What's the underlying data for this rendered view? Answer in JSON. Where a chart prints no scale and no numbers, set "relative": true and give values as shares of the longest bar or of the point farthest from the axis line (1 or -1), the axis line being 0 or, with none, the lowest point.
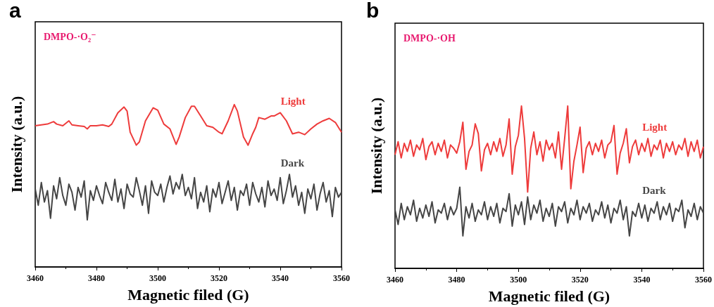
{
  "chart_data": [
    {
      "type": "line",
      "title": "a",
      "xlabel": "Magnetic filed (G)",
      "ylabel": "Intensity (a.u.)",
      "annotations": [
        "DMPO-·O₂⁻"
      ],
      "relative": true,
      "xlim": [
        3460,
        3560
      ],
      "xticks": [
        3460,
        3480,
        3500,
        3520,
        3540,
        3560
      ],
      "grid": false,
      "legend": false,
      "marker": "none",
      "line_style": "solid",
      "x": [
        3460,
        3461,
        3462,
        3463,
        3464,
        3465,
        3466,
        3467,
        3468,
        3469,
        3470,
        3471,
        3472,
        3473,
        3474,
        3475,
        3476,
        3477,
        3478,
        3479,
        3480,
        3481,
        3482,
        3483,
        3484,
        3485,
        3486,
        3487,
        3488,
        3489,
        3490,
        3491,
        3492,
        3493,
        3494,
        3495,
        3496,
        3497,
        3498,
        3499,
        3500,
        3501,
        3502,
        3503,
        3504,
        3505,
        3506,
        3507,
        3508,
        3509,
        3510,
        3511,
        3512,
        3513,
        3514,
        3515,
        3516,
        3517,
        3518,
        3519,
        3520,
        3521,
        3522,
        3523,
        3524,
        3525,
        3526,
        3527,
        3528,
        3529,
        3530,
        3531,
        3532,
        3533,
        3534,
        3535,
        3536,
        3537,
        3538,
        3539,
        3540,
        3541,
        3542,
        3543,
        3544,
        3545,
        3546,
        3547,
        3548,
        3549,
        3550,
        3551,
        3552,
        3553,
        3554,
        3555,
        3556,
        3557,
        3558,
        3559,
        3560
      ],
      "series": [
        {
          "name": "Light",
          "color": "#ee3b3b",
          "x": [
            3460,
            3462,
            3464,
            3466,
            3467,
            3469,
            3471,
            3472,
            3474,
            3476,
            3477,
            3478,
            3480,
            3482,
            3484,
            3485,
            3487,
            3489,
            3490,
            3491,
            3493,
            3494,
            3496,
            3498.5,
            3500,
            3502,
            3504,
            3506,
            3507,
            3509,
            3511,
            3512,
            3514,
            3516,
            3518,
            3520,
            3521,
            3523,
            3525,
            3526,
            3528,
            3529.5,
            3531,
            3532,
            3533,
            3535,
            3537,
            3538,
            3540,
            3542,
            3543,
            3544,
            3546,
            3548,
            3550,
            3552,
            3554,
            3556,
            3558,
            3560
          ],
          "values": [
            0.87,
            0.875,
            0.88,
            0.895,
            0.88,
            0.87,
            0.9,
            0.875,
            0.87,
            0.865,
            0.85,
            0.87,
            0.87,
            0.875,
            0.865,
            0.88,
            0.95,
            0.985,
            0.96,
            0.83,
            0.75,
            0.77,
            0.9,
            0.98,
            0.965,
            0.88,
            0.85,
            0.755,
            0.8,
            0.92,
            0.99,
            0.99,
            0.93,
            0.87,
            0.86,
            0.83,
            0.82,
            0.9,
            1.0,
            0.96,
            0.8,
            0.75,
            0.82,
            0.86,
            0.92,
            0.91,
            0.93,
            0.93,
            0.95,
            0.9,
            0.86,
            0.82,
            0.83,
            0.815,
            0.85,
            0.88,
            0.9,
            0.915,
            0.89,
            0.83
          ]
        },
        {
          "name": "Dark",
          "color": "#454545",
          "values": [
            0.48,
            0.38,
            0.52,
            0.4,
            0.47,
            0.3,
            0.5,
            0.42,
            0.55,
            0.44,
            0.38,
            0.51,
            0.46,
            0.35,
            0.49,
            0.43,
            0.53,
            0.29,
            0.47,
            0.41,
            0.5,
            0.44,
            0.39,
            0.52,
            0.46,
            0.41,
            0.54,
            0.4,
            0.48,
            0.36,
            0.51,
            0.45,
            0.43,
            0.55,
            0.47,
            0.38,
            0.5,
            0.33,
            0.53,
            0.46,
            0.44,
            0.51,
            0.4,
            0.49,
            0.56,
            0.45,
            0.52,
            0.48,
            0.57,
            0.44,
            0.49,
            0.42,
            0.55,
            0.36,
            0.46,
            0.4,
            0.5,
            0.34,
            0.48,
            0.43,
            0.52,
            0.39,
            0.46,
            0.53,
            0.41,
            0.49,
            0.35,
            0.47,
            0.44,
            0.51,
            0.38,
            0.52,
            0.45,
            0.4,
            0.49,
            0.37,
            0.53,
            0.44,
            0.48,
            0.41,
            0.55,
            0.39,
            0.47,
            0.57,
            0.43,
            0.5,
            0.38,
            0.46,
            0.33,
            0.48,
            0.42,
            0.51,
            0.35,
            0.45,
            0.52,
            0.4,
            0.47,
            0.31,
            0.49,
            0.43,
            0.46
          ]
        }
      ]
    },
    {
      "type": "line",
      "title": "b",
      "xlabel": "Magnetic filed (G)",
      "ylabel": "Intensity (a.u.)",
      "annotations": [
        "DMPO-·OH"
      ],
      "relative": true,
      "xlim": [
        3460,
        3560
      ],
      "xticks": [
        3460,
        3480,
        3500,
        3520,
        3540,
        3560
      ],
      "grid": false,
      "legend": false,
      "marker": "none",
      "line_style": "solid",
      "x": [
        3460,
        3461,
        3462,
        3463,
        3464,
        3465,
        3466,
        3467,
        3468,
        3469,
        3470,
        3471,
        3472,
        3473,
        3474,
        3475,
        3476,
        3477,
        3478,
        3479,
        3480,
        3481,
        3482,
        3483,
        3484,
        3485,
        3486,
        3487,
        3488,
        3489,
        3490,
        3491,
        3492,
        3493,
        3494,
        3495,
        3496,
        3497,
        3498,
        3499,
        3500,
        3501,
        3502,
        3503,
        3504,
        3505,
        3506,
        3507,
        3508,
        3509,
        3510,
        3511,
        3512,
        3513,
        3514,
        3515,
        3516,
        3517,
        3518,
        3519,
        3520,
        3521,
        3522,
        3523,
        3524,
        3525,
        3526,
        3527,
        3528,
        3529,
        3530,
        3531,
        3532,
        3533,
        3534,
        3535,
        3536,
        3537,
        3538,
        3539,
        3540,
        3541,
        3542,
        3543,
        3544,
        3545,
        3546,
        3547,
        3548,
        3549,
        3550,
        3551,
        3552,
        3553,
        3554,
        3555,
        3556,
        3557,
        3558,
        3559,
        3560
      ],
      "series": [
        {
          "name": "Light",
          "color": "#ee3b3b",
          "values": [
            0.7,
            0.78,
            0.68,
            0.77,
            0.72,
            0.79,
            0.69,
            0.76,
            0.73,
            0.8,
            0.67,
            0.75,
            0.78,
            0.7,
            0.77,
            0.72,
            0.79,
            0.68,
            0.76,
            0.74,
            0.71,
            0.78,
            0.9,
            0.61,
            0.72,
            0.76,
            0.89,
            0.83,
            0.6,
            0.73,
            0.77,
            0.7,
            0.78,
            0.72,
            0.8,
            0.69,
            0.76,
            0.92,
            0.58,
            0.75,
            0.82,
            1.0,
            0.8,
            0.47,
            0.74,
            0.84,
            0.7,
            0.78,
            0.66,
            0.79,
            0.73,
            0.77,
            0.68,
            0.84,
            0.61,
            0.8,
            1.0,
            0.49,
            0.66,
            0.76,
            0.87,
            0.59,
            0.74,
            0.78,
            0.7,
            0.77,
            0.72,
            0.79,
            0.68,
            0.76,
            0.78,
            0.88,
            0.58,
            0.71,
            0.77,
            0.86,
            0.65,
            0.75,
            0.79,
            0.7,
            0.77,
            0.72,
            0.8,
            0.69,
            0.76,
            0.73,
            0.79,
            0.68,
            0.77,
            0.72,
            0.78,
            0.7,
            0.76,
            0.73,
            0.8,
            0.69,
            0.78,
            0.72,
            0.79,
            0.68,
            0.75
          ]
        },
        {
          "name": "Dark",
          "color": "#454545",
          "values": [
            0.36,
            0.27,
            0.4,
            0.3,
            0.38,
            0.33,
            0.42,
            0.29,
            0.37,
            0.31,
            0.39,
            0.32,
            0.41,
            0.28,
            0.36,
            0.34,
            0.4,
            0.3,
            0.38,
            0.33,
            0.37,
            0.5,
            0.2,
            0.38,
            0.31,
            0.4,
            0.29,
            0.36,
            0.33,
            0.41,
            0.3,
            0.38,
            0.32,
            0.4,
            0.28,
            0.37,
            0.35,
            0.46,
            0.26,
            0.39,
            0.33,
            0.41,
            0.27,
            0.44,
            0.3,
            0.39,
            0.34,
            0.42,
            0.29,
            0.37,
            0.32,
            0.4,
            0.26,
            0.38,
            0.35,
            0.41,
            0.28,
            0.37,
            0.33,
            0.42,
            0.3,
            0.38,
            0.34,
            0.4,
            0.29,
            0.36,
            0.33,
            0.41,
            0.31,
            0.39,
            0.28,
            0.37,
            0.34,
            0.42,
            0.3,
            0.38,
            0.2,
            0.35,
            0.32,
            0.4,
            0.31,
            0.39,
            0.29,
            0.37,
            0.34,
            0.41,
            0.3,
            0.38,
            0.33,
            0.4,
            0.29,
            0.37,
            0.35,
            0.42,
            0.25,
            0.36,
            0.32,
            0.4,
            0.3,
            0.38,
            0.34
          ]
        }
      ]
    }
  ]
}
